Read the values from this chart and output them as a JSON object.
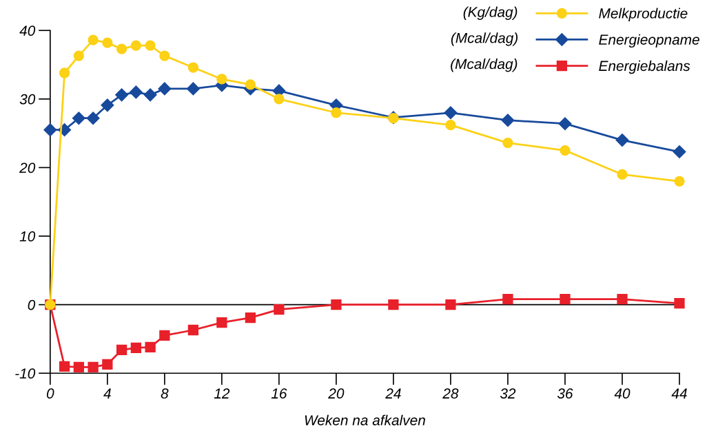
{
  "chart_data": {
    "type": "line",
    "xlabel": "Weken na afkalven",
    "x": [
      0,
      1,
      2,
      3,
      4,
      5,
      6,
      7,
      8,
      10,
      12,
      14,
      16,
      20,
      24,
      28,
      32,
      36,
      40,
      44
    ],
    "series": [
      {
        "name": "Melkproductie",
        "color": "#fcd116",
        "marker": "circle",
        "values": [
          0,
          33.8,
          36.3,
          38.6,
          38.2,
          37.3,
          37.8,
          37.8,
          36.3,
          34.6,
          32.9,
          32.1,
          30.0,
          28.0,
          27.2,
          26.2,
          23.6,
          22.5,
          19.0,
          18.0
        ]
      },
      {
        "name": "Energieopname",
        "color": "#184a9c",
        "marker": "diamond",
        "values": [
          25.5,
          25.5,
          27.2,
          27.2,
          29.1,
          30.6,
          31.0,
          30.6,
          31.5,
          31.5,
          32.0,
          31.5,
          31.2,
          29.1,
          27.3,
          28.0,
          26.9,
          26.4,
          24.0,
          22.3
        ]
      },
      {
        "name": "Energiebalans",
        "color": "#e8202a",
        "marker": "square",
        "values": [
          0,
          -9.0,
          -9.1,
          -9.1,
          -8.7,
          -6.6,
          -6.3,
          -6.2,
          -4.5,
          -3.7,
          -2.6,
          -1.9,
          -0.7,
          0,
          0,
          0,
          0.8,
          0.8,
          0.8,
          0.2
        ]
      }
    ],
    "annotations": [
      "(Kg/dag)",
      "(Mcal/dag)",
      "(Mcal/dag)"
    ],
    "xlim": [
      0,
      44
    ],
    "xticks": [
      0,
      4,
      8,
      12,
      16,
      20,
      24,
      28,
      32,
      36,
      40,
      44
    ],
    "ylim": [
      -10,
      40
    ],
    "yticks": [
      -10,
      0,
      10,
      20,
      30,
      40
    ],
    "ref_lines": [
      {
        "axis": "y",
        "value": 0,
        "color": "#000000"
      }
    ],
    "grid": false,
    "legend": "top right",
    "line_style": "solid"
  }
}
